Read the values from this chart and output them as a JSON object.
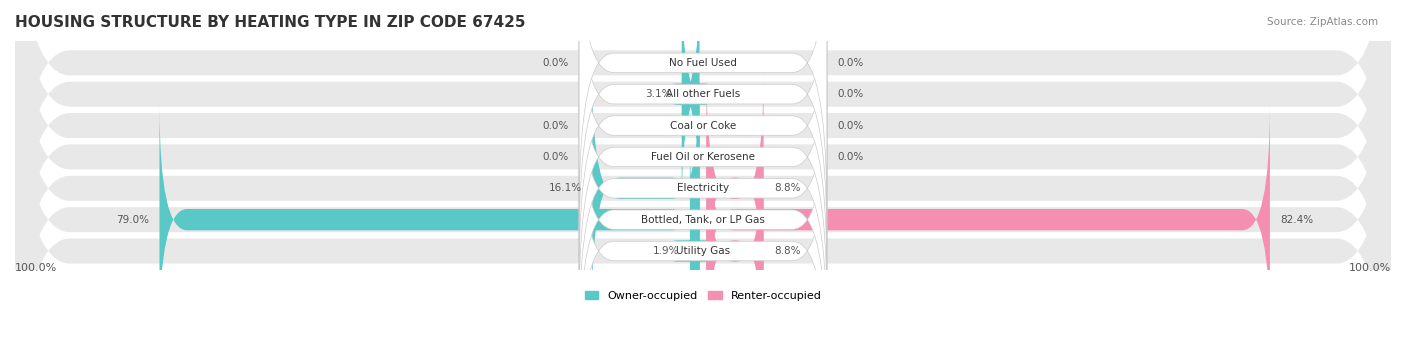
{
  "title": "HOUSING STRUCTURE BY HEATING TYPE IN ZIP CODE 67425",
  "source": "Source: ZipAtlas.com",
  "categories": [
    "Utility Gas",
    "Bottled, Tank, or LP Gas",
    "Electricity",
    "Fuel Oil or Kerosene",
    "Coal or Coke",
    "All other Fuels",
    "No Fuel Used"
  ],
  "owner_values": [
    1.9,
    79.0,
    16.1,
    0.0,
    0.0,
    3.1,
    0.0
  ],
  "renter_values": [
    8.8,
    82.4,
    8.8,
    0.0,
    0.0,
    0.0,
    0.0
  ],
  "owner_color": "#5bc8c8",
  "renter_color": "#f48fb1",
  "bar_bg_color": "#f0f0f0",
  "row_bg_color": "#e8e8e8",
  "label_bg_color": "#ffffff",
  "title_fontsize": 11,
  "label_fontsize": 8.5,
  "axis_max": 100.0,
  "axis_label_left": "100.0%",
  "axis_label_right": "100.0%"
}
